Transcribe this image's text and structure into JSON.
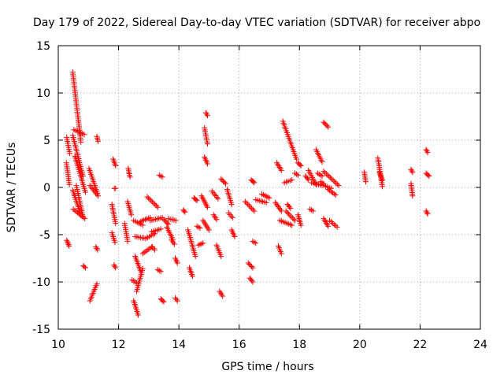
{
  "chart_data": {
    "type": "scatter",
    "title": "Day 179 of 2022, Sidereal Day-to-day VTEC variation (SDTVAR) for receiver abpo",
    "xlabel": "GPS time / hours",
    "ylabel": "SDTVAR / TECUs",
    "xlim": [
      10,
      24
    ],
    "ylim": [
      -15,
      15
    ],
    "xticks": [
      10,
      12,
      14,
      16,
      18,
      20,
      22,
      24
    ],
    "yticks": [
      -15,
      -10,
      -5,
      0,
      5,
      10,
      15
    ],
    "xtick_labels": [
      "10",
      "12",
      "14",
      "16",
      "18",
      "20",
      "22",
      "24"
    ],
    "ytick_labels": [
      "-15",
      "-10",
      "-5",
      "0",
      "5",
      "10",
      "15"
    ],
    "grid": true,
    "marker": "+",
    "color": "#ff0000",
    "series": [
      {
        "name": "SDTVAR",
        "segments": [
          {
            "x": [
              10.28,
              10.38
            ],
            "y": [
              5.3,
              3.6
            ]
          },
          {
            "x": [
              10.27,
              10.37
            ],
            "y": [
              2.6,
              0.3
            ]
          },
          {
            "x": [
              10.28,
              10.36
            ],
            "y": [
              -5.6,
              -6.2
            ]
          },
          {
            "x": [
              10.48,
              10.75
            ],
            "y": [
              12.2,
              4.8
            ]
          },
          {
            "x": [
              10.48,
              10.82
            ],
            "y": [
              5.5,
              1.2
            ]
          },
          {
            "x": [
              10.52,
              10.86
            ],
            "y": [
              6.1,
              5.6
            ]
          },
          {
            "x": [
              10.55,
              10.9
            ],
            "y": [
              3.3,
              -0.5
            ]
          },
          {
            "x": [
              10.48,
              10.72
            ],
            "y": [
              -0.3,
              -2.6
            ]
          },
          {
            "x": [
              10.5,
              10.88
            ],
            "y": [
              -2.3,
              -3.3
            ]
          },
          {
            "x": [
              10.6,
              10.82
            ],
            "y": [
              0.2,
              -3.1
            ]
          },
          {
            "x": [
              10.83,
              10.9
            ],
            "y": [
              -8.3,
              -8.5
            ]
          },
          {
            "x": [
              11.02,
              11.3
            ],
            "y": [
              2.0,
              -0.6
            ]
          },
          {
            "x": [
              11.05,
              11.32
            ],
            "y": [
              0.2,
              -0.9
            ]
          },
          {
            "x": [
              11.28,
              11.32
            ],
            "y": [
              5.4,
              4.9
            ]
          },
          {
            "x": [
              11.05,
              11.28
            ],
            "y": [
              -12.0,
              -10.2
            ]
          },
          {
            "x": [
              11.25,
              11.3
            ],
            "y": [
              -6.3,
              -6.6
            ]
          },
          {
            "x": [
              11.82,
              11.9
            ],
            "y": [
              3.0,
              2.3
            ]
          },
          {
            "x": [
              11.78,
              11.9
            ],
            "y": [
              -1.8,
              -3.8
            ]
          },
          {
            "x": [
              11.78,
              11.88
            ],
            "y": [
              -4.8,
              -5.8
            ]
          },
          {
            "x": [
              11.86,
              11.9
            ],
            "y": [
              -0.1,
              -0.1
            ]
          },
          {
            "x": [
              11.85,
              11.9
            ],
            "y": [
              -8.2,
              -8.5
            ]
          },
          {
            "x": [
              12.2,
              12.3
            ],
            "y": [
              -3.8,
              -5.7
            ]
          },
          {
            "x": [
              12.32,
              12.38
            ],
            "y": [
              2.0,
              1.1
            ]
          },
          {
            "x": [
              12.3,
              12.42
            ],
            "y": [
              -1.5,
              -2.9
            ]
          },
          {
            "x": [
              12.45,
              12.6
            ],
            "y": [
              -9.8,
              -10.1
            ]
          },
          {
            "x": [
              12.5,
              12.65
            ],
            "y": [
              -12.0,
              -13.5
            ]
          },
          {
            "x": [
              12.5,
              12.8
            ],
            "y": [
              -3.5,
              -4.0
            ]
          },
          {
            "x": [
              12.55,
              12.9
            ],
            "y": [
              -5.2,
              -5.4
            ]
          },
          {
            "x": [
              12.55,
              12.75
            ],
            "y": [
              -7.3,
              -9.0
            ]
          },
          {
            "x": [
              12.6,
              12.8
            ],
            "y": [
              -11.0,
              -8.6
            ]
          },
          {
            "x": [
              12.72,
              13.05
            ],
            "y": [
              -3.6,
              -3.2
            ]
          },
          {
            "x": [
              12.9,
              13.2
            ],
            "y": [
              -5.4,
              -4.9
            ]
          },
          {
            "x": [
              12.8,
              13.1
            ],
            "y": [
              -7.0,
              -6.3
            ]
          },
          {
            "x": [
              12.95,
              13.3
            ],
            "y": [
              -1.0,
              -2.1
            ]
          },
          {
            "x": [
              13.05,
              13.45
            ],
            "y": [
              -3.5,
              -3.2
            ]
          },
          {
            "x": [
              13.1,
              13.4
            ],
            "y": [
              -4.7,
              -4.4
            ]
          },
          {
            "x": [
              13.12,
              13.2
            ],
            "y": [
              -6.3,
              -6.6
            ]
          },
          {
            "x": [
              13.3,
              13.4
            ],
            "y": [
              -8.7,
              -8.9
            ]
          },
          {
            "x": [
              13.4,
              13.5
            ],
            "y": [
              -11.8,
              -12.1
            ]
          },
          {
            "x": [
              13.35,
              13.45
            ],
            "y": [
              1.3,
              1.1
            ]
          },
          {
            "x": [
              13.5,
              13.65
            ],
            "y": [
              -3.4,
              -3.9
            ]
          },
          {
            "x": [
              13.6,
              13.8
            ],
            "y": [
              -4.2,
              -5.5
            ]
          },
          {
            "x": [
              13.65,
              13.9
            ],
            "y": [
              -3.3,
              -3.5
            ]
          },
          {
            "x": [
              13.75,
              13.85
            ],
            "y": [
              -5.5,
              -6.0
            ]
          },
          {
            "x": [
              13.88,
              13.95
            ],
            "y": [
              -7.5,
              -8.0
            ]
          },
          {
            "x": [
              13.88,
              13.95
            ],
            "y": [
              -11.7,
              -12.0
            ]
          },
          {
            "x": [
              14.15,
              14.2
            ],
            "y": [
              -2.4,
              -2.6
            ]
          },
          {
            "x": [
              14.3,
              14.55
            ],
            "y": [
              -4.5,
              -7.3
            ]
          },
          {
            "x": [
              14.35,
              14.45
            ],
            "y": [
              -8.5,
              -9.4
            ]
          },
          {
            "x": [
              14.5,
              14.6
            ],
            "y": [
              -1.1,
              -1.4
            ]
          },
          {
            "x": [
              14.6,
              14.7
            ],
            "y": [
              -4.1,
              -4.3
            ]
          },
          {
            "x": [
              14.65,
              14.8
            ],
            "y": [
              -6.1,
              -5.9
            ]
          },
          {
            "x": [
              14.75,
              14.95
            ],
            "y": [
              -0.9,
              -2.1
            ]
          },
          {
            "x": [
              14.8,
              15.0
            ],
            "y": [
              -3.5,
              -4.5
            ]
          },
          {
            "x": [
              14.85,
              14.95
            ],
            "y": [
              6.3,
              4.6
            ]
          },
          {
            "x": [
              14.85,
              14.95
            ],
            "y": [
              3.2,
              2.5
            ]
          },
          {
            "x": [
              14.9,
              14.95
            ],
            "y": [
              7.9,
              7.6
            ]
          },
          {
            "x": [
              15.1,
              15.3
            ],
            "y": [
              -0.4,
              -1.2
            ]
          },
          {
            "x": [
              15.15,
              15.25
            ],
            "y": [
              -2.9,
              -3.4
            ]
          },
          {
            "x": [
              15.25,
              15.4
            ],
            "y": [
              -6.1,
              -7.3
            ]
          },
          {
            "x": [
              15.35,
              15.45
            ],
            "y": [
              -11.0,
              -11.5
            ]
          },
          {
            "x": [
              15.4,
              15.55
            ],
            "y": [
              0.9,
              0.4
            ]
          },
          {
            "x": [
              15.6,
              15.75
            ],
            "y": [
              -0.2,
              -1.8
            ]
          },
          {
            "x": [
              15.65,
              15.78
            ],
            "y": [
              -2.7,
              -3.2
            ]
          },
          {
            "x": [
              15.75,
              15.85
            ],
            "y": [
              -4.5,
              -5.2
            ]
          },
          {
            "x": [
              16.2,
              16.5
            ],
            "y": [
              -1.5,
              -2.5
            ]
          },
          {
            "x": [
              16.3,
              16.45
            ],
            "y": [
              -8.0,
              -8.5
            ]
          },
          {
            "x": [
              16.35,
              16.45
            ],
            "y": [
              -9.6,
              -10.0
            ]
          },
          {
            "x": [
              16.4,
              16.5
            ],
            "y": [
              0.8,
              0.5
            ]
          },
          {
            "x": [
              16.45,
              16.55
            ],
            "y": [
              -5.7,
              -5.9
            ]
          },
          {
            "x": [
              16.55,
              16.9
            ],
            "y": [
              -1.3,
              -1.6
            ]
          },
          {
            "x": [
              16.75,
              17.0
            ],
            "y": [
              -0.7,
              -1.1
            ]
          },
          {
            "x": [
              17.2,
              17.4
            ],
            "y": [
              -1.6,
              -2.5
            ]
          },
          {
            "x": [
              17.25,
              17.4
            ],
            "y": [
              2.6,
              1.8
            ]
          },
          {
            "x": [
              17.3,
              17.4
            ],
            "y": [
              -6.2,
              -7.0
            ]
          },
          {
            "x": [
              17.35,
              17.75
            ],
            "y": [
              -3.5,
              -4.0
            ]
          },
          {
            "x": [
              17.45,
              17.9
            ],
            "y": [
              7.0,
              3.0
            ]
          },
          {
            "x": [
              17.5,
              17.75
            ],
            "y": [
              0.5,
              0.8
            ]
          },
          {
            "x": [
              17.55,
              17.85
            ],
            "y": [
              -2.5,
              -3.5
            ]
          },
          {
            "x": [
              17.6,
              17.7
            ],
            "y": [
              -1.8,
              -2.2
            ]
          },
          {
            "x": [
              17.85,
              17.95
            ],
            "y": [
              1.5,
              1.3
            ]
          },
          {
            "x": [
              17.95,
              18.05
            ],
            "y": [
              2.6,
              2.3
            ]
          },
          {
            "x": [
              17.95,
              18.05
            ],
            "y": [
              -2.9,
              -4.0
            ]
          },
          {
            "x": [
              18.2,
              18.3
            ],
            "y": [
              1.2,
              0.8
            ]
          },
          {
            "x": [
              18.3,
              18.55
            ],
            "y": [
              1.8,
              0.3
            ]
          },
          {
            "x": [
              18.35,
              18.45
            ],
            "y": [
              -2.3,
              -2.5
            ]
          },
          {
            "x": [
              18.4,
              18.75
            ],
            "y": [
              0.5,
              0.2
            ]
          },
          {
            "x": [
              18.55,
              18.75
            ],
            "y": [
              4.0,
              2.7
            ]
          },
          {
            "x": [
              18.6,
              18.75
            ],
            "y": [
              1.5,
              1.2
            ]
          },
          {
            "x": [
              18.7,
              18.8
            ],
            "y": [
              0.6,
              0.4
            ]
          },
          {
            "x": [
              18.8,
              18.95
            ],
            "y": [
              6.9,
              6.4
            ]
          },
          {
            "x": [
              18.75,
              19.05
            ],
            "y": [
              0.3,
              -0.1
            ]
          },
          {
            "x": [
              18.8,
              19.3
            ],
            "y": [
              1.7,
              0.2
            ]
          },
          {
            "x": [
              18.8,
              18.95
            ],
            "y": [
              -3.3,
              -4.1
            ]
          },
          {
            "x": [
              18.95,
              19.2
            ],
            "y": [
              -0.2,
              -0.8
            ]
          },
          {
            "x": [
              19.0,
              19.25
            ],
            "y": [
              -3.5,
              -4.2
            ]
          },
          {
            "x": [
              20.15,
              20.2
            ],
            "y": [
              1.6,
              0.6
            ]
          },
          {
            "x": [
              20.6,
              20.75
            ],
            "y": [
              3.1,
              0.1
            ]
          },
          {
            "x": [
              20.65,
              20.75
            ],
            "y": [
              1.6,
              0.8
            ]
          },
          {
            "x": [
              21.7,
              21.75
            ],
            "y": [
              1.9,
              1.6
            ]
          },
          {
            "x": [
              21.7,
              21.75
            ],
            "y": [
              0.4,
              -0.9
            ]
          },
          {
            "x": [
              22.2,
              22.25
            ],
            "y": [
              4.0,
              3.7
            ]
          },
          {
            "x": [
              22.2,
              22.3
            ],
            "y": [
              1.5,
              1.2
            ]
          },
          {
            "x": [
              22.2,
              22.25
            ],
            "y": [
              -2.5,
              -2.8
            ]
          }
        ]
      }
    ]
  }
}
